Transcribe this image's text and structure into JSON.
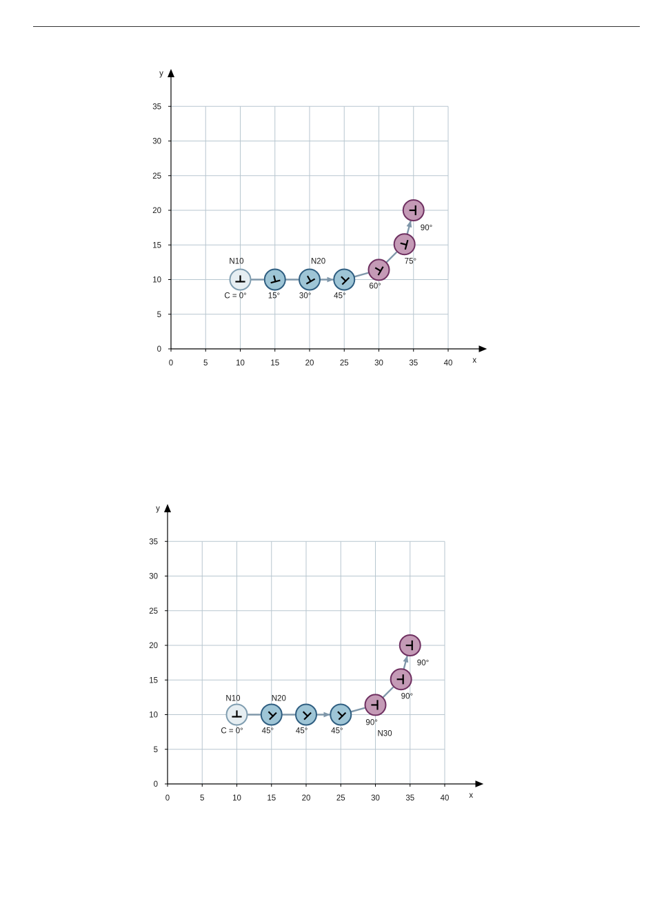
{
  "colors": {
    "grid": "#b7c6cf",
    "axis": "#000000",
    "path": "#7f97aa",
    "start_fill": "#e6eef2",
    "start_stroke": "#7f9db0",
    "blue_fill": "#9ec5d6",
    "blue_stroke": "#2e5d80",
    "purple_fill": "#c49ab6",
    "purple_stroke": "#6e2f60",
    "tool_mark": "#000000"
  },
  "diagrams": [
    {
      "y_axis_label": "y",
      "x_axis_label": "x",
      "x_ticks": [
        "0",
        "5",
        "10",
        "15",
        "20",
        "25",
        "30",
        "35",
        "40"
      ],
      "y_ticks": [
        "0",
        "5",
        "10",
        "15",
        "20",
        "25",
        "30",
        "35"
      ],
      "x_range": [
        0,
        40
      ],
      "y_range": [
        0,
        35
      ],
      "positions": [
        {
          "x": 10,
          "y": 10,
          "orientation_deg": 0,
          "style": "start"
        },
        {
          "x": 15,
          "y": 10,
          "orientation_deg": 15,
          "style": "blue"
        },
        {
          "x": 20,
          "y": 10,
          "orientation_deg": 30,
          "style": "blue"
        },
        {
          "x": 25,
          "y": 10,
          "orientation_deg": 45,
          "style": "blue"
        },
        {
          "x": 30,
          "y": 11.4,
          "orientation_deg": 60,
          "style": "purple"
        },
        {
          "x": 33.7,
          "y": 15.1,
          "orientation_deg": 75,
          "style": "purple"
        },
        {
          "x": 35,
          "y": 20,
          "orientation_deg": 90,
          "style": "purple"
        }
      ],
      "labels": [
        {
          "text": "N10",
          "x": 8.4,
          "y": 12.3
        },
        {
          "text": "N20",
          "x": 20.2,
          "y": 12.3
        },
        {
          "text": "C = 0°",
          "x": 7.7,
          "y": 7.3
        },
        {
          "text": "15°",
          "x": 14.0,
          "y": 7.3
        },
        {
          "text": "30°",
          "x": 18.5,
          "y": 7.3
        },
        {
          "text": "45°",
          "x": 23.5,
          "y": 7.3
        },
        {
          "text": "60°",
          "x": 28.6,
          "y": 8.7
        },
        {
          "text": "75°",
          "x": 33.7,
          "y": 12.3
        },
        {
          "text": "90°",
          "x": 36.0,
          "y": 17.1
        }
      ]
    },
    {
      "y_axis_label": "y",
      "x_axis_label": "x",
      "x_ticks": [
        "0",
        "5",
        "10",
        "15",
        "20",
        "25",
        "30",
        "35",
        "40"
      ],
      "y_ticks": [
        "0",
        "5",
        "10",
        "15",
        "20",
        "25",
        "30",
        "35"
      ],
      "x_range": [
        0,
        40
      ],
      "y_range": [
        0,
        35
      ],
      "positions": [
        {
          "x": 10,
          "y": 10,
          "orientation_deg": 0,
          "style": "start"
        },
        {
          "x": 15,
          "y": 10,
          "orientation_deg": 45,
          "style": "blue"
        },
        {
          "x": 20,
          "y": 10,
          "orientation_deg": 45,
          "style": "blue"
        },
        {
          "x": 25,
          "y": 10,
          "orientation_deg": 45,
          "style": "blue"
        },
        {
          "x": 30,
          "y": 11.4,
          "orientation_deg": 90,
          "style": "purple"
        },
        {
          "x": 33.7,
          "y": 15.1,
          "orientation_deg": 90,
          "style": "purple"
        },
        {
          "x": 35,
          "y": 20,
          "orientation_deg": 90,
          "style": "purple"
        }
      ],
      "labels": [
        {
          "text": "N10",
          "x": 8.4,
          "y": 12.0
        },
        {
          "text": "N20",
          "x": 15.0,
          "y": 12.0
        },
        {
          "text": "C = 0°",
          "x": 7.7,
          "y": 7.3
        },
        {
          "text": "45°",
          "x": 13.6,
          "y": 7.3
        },
        {
          "text": "45°",
          "x": 18.5,
          "y": 7.3
        },
        {
          "text": "45°",
          "x": 23.6,
          "y": 7.3
        },
        {
          "text": "90°",
          "x": 28.6,
          "y": 8.5
        },
        {
          "text": "N30",
          "x": 30.3,
          "y": 6.9
        },
        {
          "text": "90°",
          "x": 33.7,
          "y": 12.3
        },
        {
          "text": "90°",
          "x": 36.0,
          "y": 17.1
        }
      ]
    }
  ]
}
